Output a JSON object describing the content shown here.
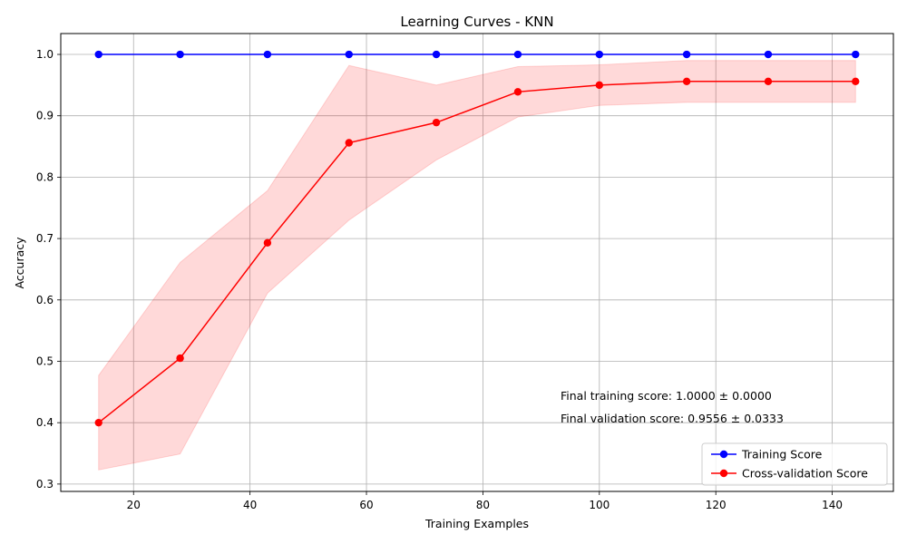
{
  "chart_data": {
    "type": "line",
    "title": "Learning Curves - KNN",
    "xlabel": "Training Examples",
    "ylabel": "Accuracy",
    "xlim": [
      7.5,
      150.5
    ],
    "ylim": [
      0.288,
      1.034
    ],
    "xticks": [
      20,
      40,
      60,
      80,
      100,
      120,
      140
    ],
    "yticks": [
      0.3,
      0.4,
      0.5,
      0.6,
      0.7,
      0.8,
      0.9,
      1.0
    ],
    "grid": true,
    "legend_position": "bottom-right",
    "x": [
      14,
      28,
      43,
      57,
      72,
      86,
      100,
      115,
      129,
      144
    ],
    "series": [
      {
        "name": "Training Score",
        "color": "#0000ff",
        "marker": "circle",
        "values": [
          1.0,
          1.0,
          1.0,
          1.0,
          1.0,
          1.0,
          1.0,
          1.0,
          1.0,
          1.0
        ]
      },
      {
        "name": "Cross-validation Score",
        "color": "#ff0000",
        "marker": "circle",
        "values": [
          0.4,
          0.505,
          0.693,
          0.856,
          0.889,
          0.939,
          0.95,
          0.956,
          0.956,
          0.956
        ],
        "band_upper": [
          0.477,
          0.661,
          0.778,
          0.982,
          0.95,
          0.98,
          0.983,
          0.99,
          0.99,
          0.99
        ],
        "band_lower": [
          0.323,
          0.349,
          0.611,
          0.73,
          0.828,
          0.898,
          0.917,
          0.922,
          0.922,
          0.922
        ],
        "band_color": "#ff0000"
      }
    ],
    "annotations": [
      "Final training score: 1.0000 ± 0.0000",
      "Final validation score: 0.9556 ± 0.0333"
    ]
  }
}
